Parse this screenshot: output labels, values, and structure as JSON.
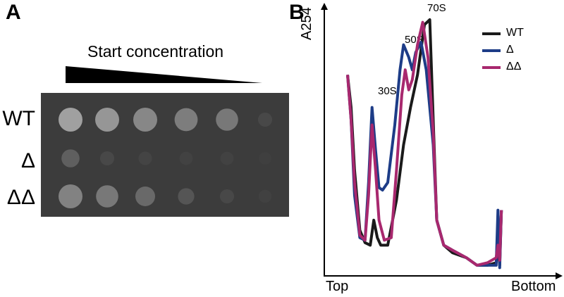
{
  "panel_a": {
    "letter": "A",
    "gradient_label": "Start concentration",
    "rows": [
      {
        "label": "WT",
        "spots": [
          1.0,
          0.9,
          0.75,
          0.65,
          0.6,
          0.12
        ]
      },
      {
        "label": "Δ",
        "spots": [
          0.35,
          0.12,
          0.08,
          0.06,
          0.06,
          0.03
        ]
      },
      {
        "label": "ΔΔ",
        "spots": [
          0.7,
          0.6,
          0.45,
          0.25,
          0.12,
          0.05
        ]
      }
    ],
    "plate_color": "#3c3c3c"
  },
  "panel_b": {
    "letter": "B",
    "chart_data": {
      "type": "line",
      "ylabel": "A254",
      "x_start_label": "Top",
      "x_end_label": "Bottom",
      "peaks": [
        "30S",
        "50S",
        "70S"
      ],
      "series": [
        {
          "name": "WT",
          "color": "#1a1a1a",
          "values": [
            [
              0,
              0.78
            ],
            [
              0.02,
              0.65
            ],
            [
              0.04,
              0.4
            ],
            [
              0.07,
              0.16
            ],
            [
              0.1,
              0.11
            ],
            [
              0.13,
              0.1
            ],
            [
              0.15,
              0.2
            ],
            [
              0.17,
              0.13
            ],
            [
              0.19,
              0.1
            ],
            [
              0.23,
              0.1
            ],
            [
              0.28,
              0.28
            ],
            [
              0.32,
              0.5
            ],
            [
              0.36,
              0.65
            ],
            [
              0.4,
              0.78
            ],
            [
              0.44,
              0.98
            ],
            [
              0.47,
              1.0
            ],
            [
              0.49,
              0.6
            ],
            [
              0.51,
              0.2
            ],
            [
              0.55,
              0.1
            ],
            [
              0.6,
              0.07
            ],
            [
              0.68,
              0.05
            ],
            [
              0.74,
              0.02
            ],
            [
              0.8,
              0.02
            ],
            [
              0.85,
              0.03
            ],
            [
              0.86,
              0.1
            ],
            [
              0.87,
              0.02
            ],
            [
              0.88,
              0.24
            ]
          ]
        },
        {
          "name": "Δ",
          "color": "#1d3c87",
          "values": [
            [
              0,
              0.78
            ],
            [
              0.02,
              0.6
            ],
            [
              0.04,
              0.3
            ],
            [
              0.07,
              0.13
            ],
            [
              0.1,
              0.12
            ],
            [
              0.12,
              0.35
            ],
            [
              0.14,
              0.65
            ],
            [
              0.16,
              0.48
            ],
            [
              0.18,
              0.33
            ],
            [
              0.2,
              0.32
            ],
            [
              0.23,
              0.35
            ],
            [
              0.27,
              0.58
            ],
            [
              0.3,
              0.8
            ],
            [
              0.32,
              0.9
            ],
            [
              0.35,
              0.85
            ],
            [
              0.37,
              0.8
            ],
            [
              0.39,
              0.87
            ],
            [
              0.42,
              0.91
            ],
            [
              0.45,
              0.8
            ],
            [
              0.49,
              0.5
            ],
            [
              0.51,
              0.2
            ],
            [
              0.55,
              0.1
            ],
            [
              0.6,
              0.08
            ],
            [
              0.68,
              0.05
            ],
            [
              0.74,
              0.02
            ],
            [
              0.8,
              0.02
            ],
            [
              0.85,
              0.02
            ],
            [
              0.86,
              0.24
            ],
            [
              0.87,
              0.01
            ],
            [
              0.88,
              0.24
            ]
          ]
        },
        {
          "name": "ΔΔ",
          "color": "#a8286e",
          "values": [
            [
              0,
              0.78
            ],
            [
              0.02,
              0.6
            ],
            [
              0.04,
              0.35
            ],
            [
              0.07,
              0.14
            ],
            [
              0.1,
              0.12
            ],
            [
              0.12,
              0.3
            ],
            [
              0.14,
              0.58
            ],
            [
              0.16,
              0.4
            ],
            [
              0.18,
              0.2
            ],
            [
              0.21,
              0.12
            ],
            [
              0.25,
              0.13
            ],
            [
              0.28,
              0.4
            ],
            [
              0.31,
              0.7
            ],
            [
              0.33,
              0.8
            ],
            [
              0.35,
              0.72
            ],
            [
              0.37,
              0.76
            ],
            [
              0.4,
              0.9
            ],
            [
              0.43,
              0.99
            ],
            [
              0.46,
              0.85
            ],
            [
              0.49,
              0.55
            ],
            [
              0.51,
              0.2
            ],
            [
              0.55,
              0.1
            ],
            [
              0.6,
              0.08
            ],
            [
              0.68,
              0.05
            ],
            [
              0.74,
              0.02
            ],
            [
              0.8,
              0.03
            ],
            [
              0.85,
              0.05
            ],
            [
              0.86,
              0.1
            ],
            [
              0.87,
              0.04
            ],
            [
              0.88,
              0.24
            ]
          ]
        }
      ]
    }
  }
}
